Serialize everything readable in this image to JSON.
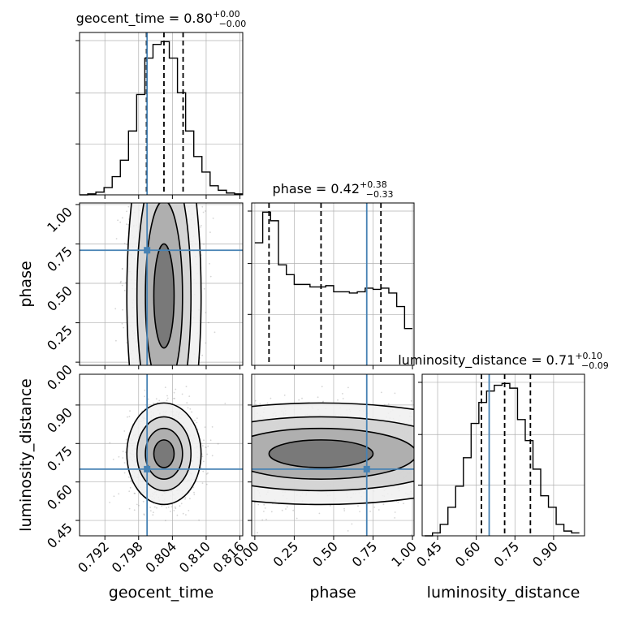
{
  "chart_data": {
    "type": "corner",
    "parameters": [
      "geocent_time",
      "phase",
      "luminosity_distance"
    ],
    "truths": {
      "geocent_time": 0.7995,
      "phase": 0.71,
      "luminosity_distance": 0.65
    },
    "titles": [
      {
        "name": "geocent_time",
        "median": "0.80",
        "plus": "+0.00",
        "minus": "−0.00"
      },
      {
        "name": "phase",
        "median": "0.42",
        "plus": "+0.38",
        "minus": "−0.33"
      },
      {
        "name": "luminosity_distance",
        "median": "0.71",
        "plus": "+0.10",
        "minus": "−0.09"
      }
    ],
    "axes": {
      "geocent_time": {
        "range": [
          0.7875,
          0.8165
        ],
        "ticks": [
          0.792,
          0.798,
          0.804,
          0.81,
          0.816
        ],
        "tick_labels": [
          "0.792",
          "0.798",
          "0.804",
          "0.810",
          "0.816"
        ]
      },
      "phase": {
        "range": [
          -0.02,
          1.01
        ],
        "ticks": [
          0.0,
          0.25,
          0.5,
          0.75,
          1.0
        ],
        "tick_labels": [
          "0.00",
          "0.25",
          "0.50",
          "0.75",
          "1.00"
        ]
      },
      "luminosity_distance": {
        "range": [
          0.39,
          1.02
        ],
        "ticks": [
          0.45,
          0.6,
          0.75,
          0.9
        ],
        "tick_labels": [
          "0.45",
          "0.60",
          "0.75",
          "0.90"
        ]
      }
    },
    "quantiles": {
      "geocent_time": [
        0.7994,
        0.8025,
        0.8059
      ],
      "phase": [
        0.09,
        0.42,
        0.8
      ],
      "luminosity_distance": [
        0.62,
        0.71,
        0.81
      ]
    },
    "histograms": {
      "geocent_time": {
        "edges_start": 0.7875,
        "bin_width": 0.00145,
        "heights": [
          0,
          1,
          3,
          8,
          20,
          38,
          70,
          110,
          150,
          165,
          168,
          150,
          112,
          70,
          42,
          25,
          10,
          5,
          2,
          1
        ]
      },
      "phase": {
        "edges_start": 0.0,
        "bin_width": 0.05,
        "heights": [
          100,
          125,
          118,
          82,
          74,
          66,
          66,
          64,
          64,
          65,
          60,
          60,
          59,
          60,
          63,
          62,
          63,
          59,
          48,
          30
        ]
      },
      "luminosity_distance": {
        "edges_start": 0.4,
        "bin_width": 0.03,
        "heights": [
          0,
          3,
          12,
          30,
          52,
          82,
          118,
          140,
          152,
          158,
          160,
          155,
          122,
          100,
          70,
          42,
          30,
          12,
          5,
          3
        ]
      }
    },
    "scatter": {
      "geocent_time": {
        "mean": 0.8025,
        "sd": 0.003
      },
      "phase": {
        "mean": 0.42,
        "sd": 0.28
      },
      "luminosity_distance": {
        "mean": 0.71,
        "sd": 0.09
      }
    },
    "colors": {
      "hist": "#000000",
      "truth": "#4682b4",
      "grid": "#b0b0b0",
      "scatter": "#888888"
    },
    "grid": true
  }
}
